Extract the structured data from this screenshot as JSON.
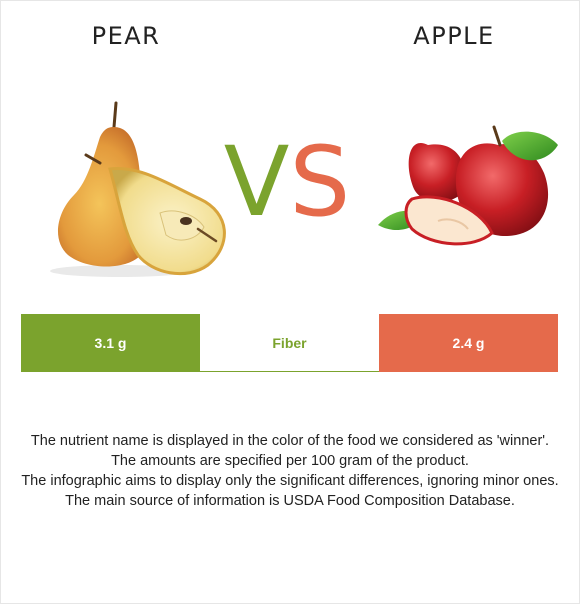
{
  "left_food": {
    "name": "PEAR",
    "image_icon": "pear-image"
  },
  "right_food": {
    "name": "APPLE",
    "image_icon": "apple-image"
  },
  "vs": {
    "v": "V",
    "s": "S"
  },
  "comparison": {
    "nutrient": "Fiber",
    "left_value": "3.1 g",
    "right_value": "2.4 g",
    "winner": "left"
  },
  "colors": {
    "left": "#7ba32d",
    "right": "#e56a4b"
  },
  "notes": [
    "The nutrient name is displayed in the color of the food we considered as 'winner'.",
    "The amounts are specified per 100 gram of the product.",
    "The infographic aims to display only the significant differences, ignoring minor ones.",
    "The main source of information is USDA Food Composition Database."
  ]
}
